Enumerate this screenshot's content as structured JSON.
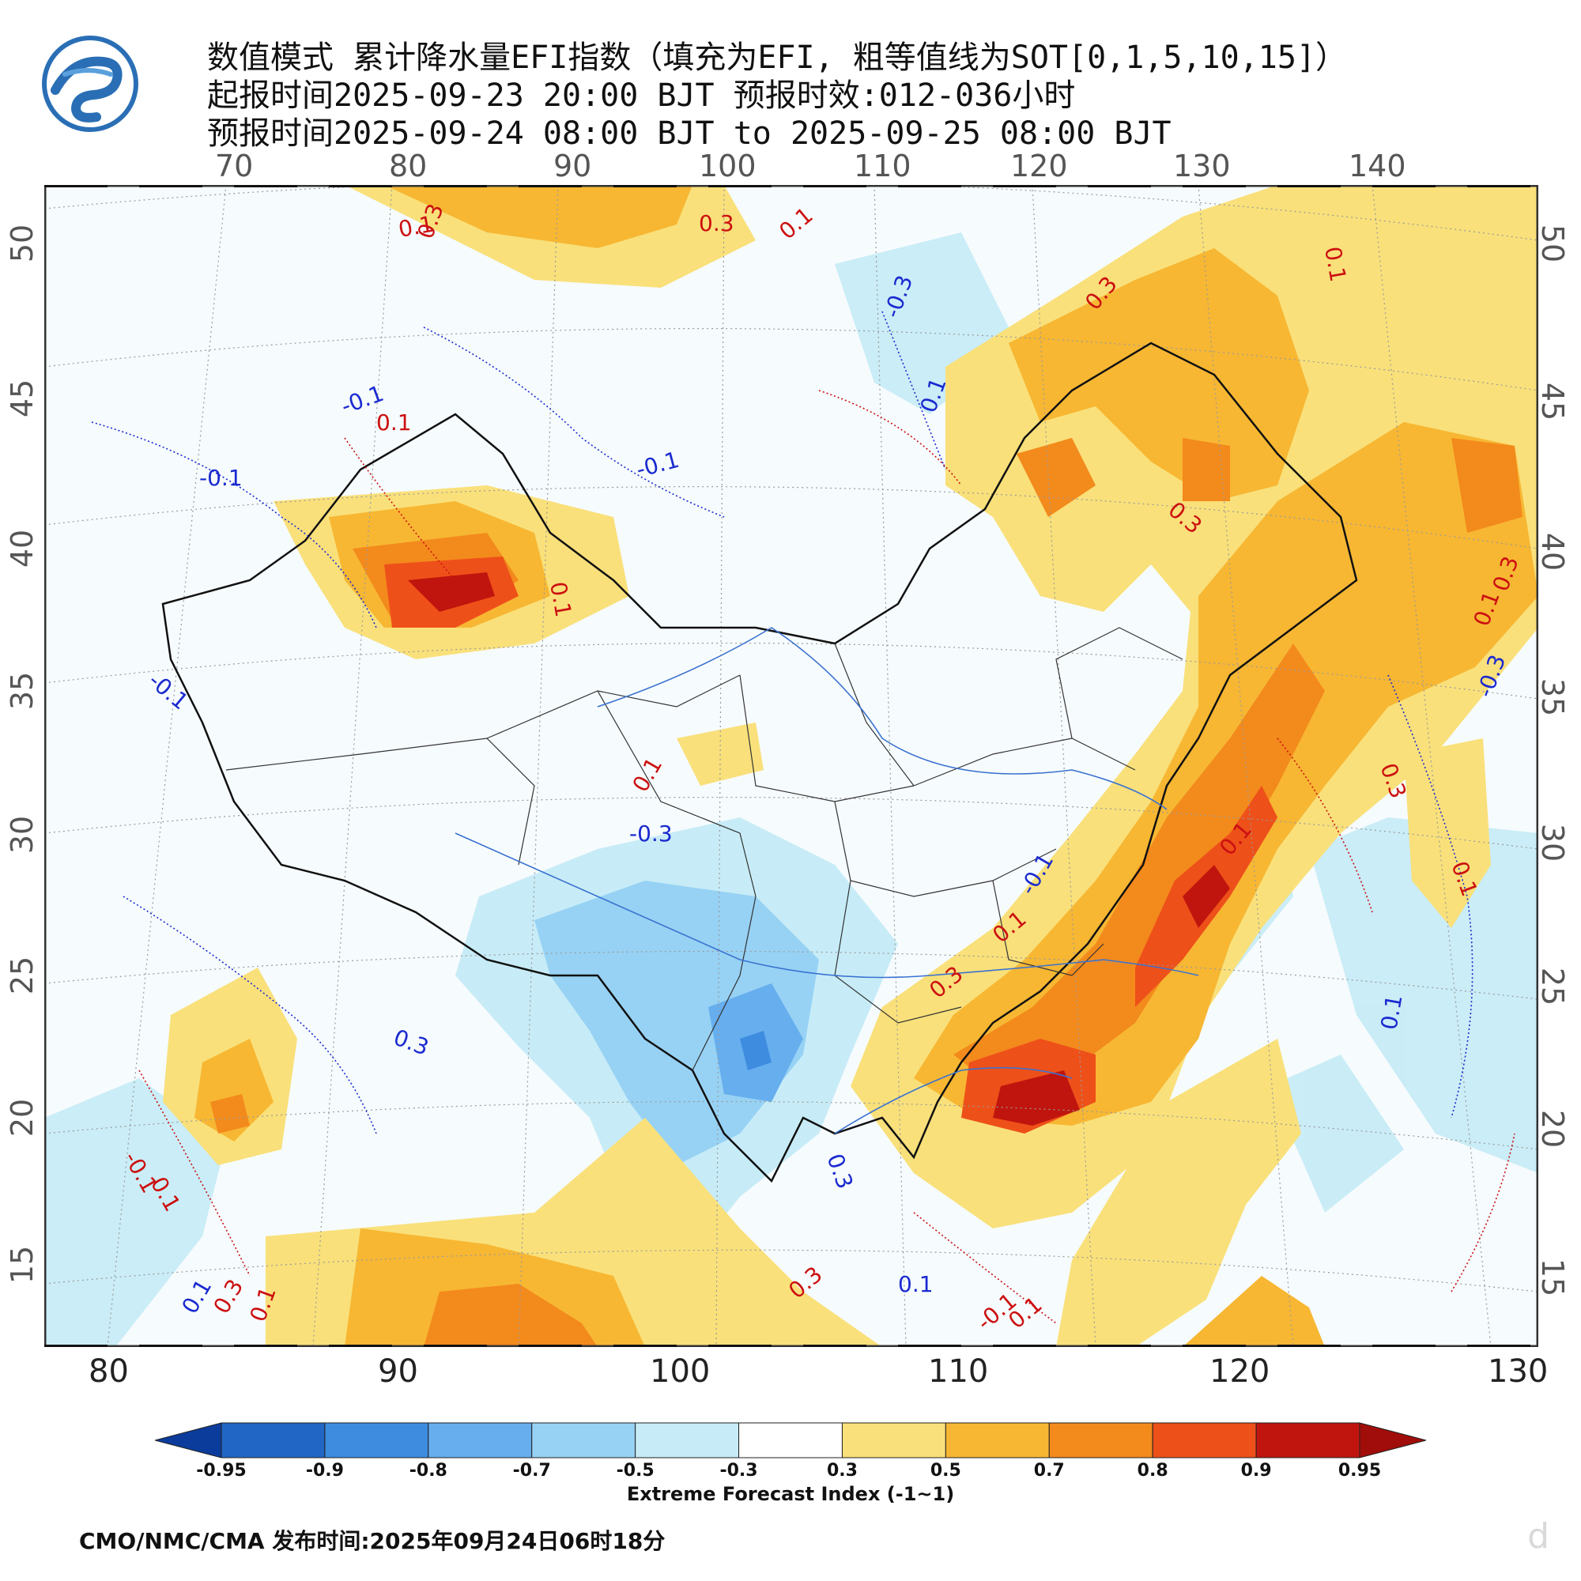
{
  "header": {
    "line1": "数值模式 累计降水量EFI指数（填充为EFI, 粗等值线为SOT[0,1,5,10,15]）",
    "line2": "起报时间2025-09-23 20:00 BJT 预报时效:012-036小时",
    "line3": "预报时间2025-09-24 08:00 BJT to 2025-09-25 08:00 BJT"
  },
  "axes": {
    "top_lon_ticks": [
      "70",
      "80",
      "90",
      "100",
      "110",
      "120",
      "130",
      "140"
    ],
    "bottom_lon_ticks": [
      "80",
      "90",
      "100",
      "110",
      "120",
      "130"
    ],
    "lat_ticks": [
      "50",
      "45",
      "40",
      "35",
      "30",
      "25",
      "20",
      "15"
    ]
  },
  "contour_labels": [
    "0.1",
    "0.3",
    "0.3",
    "0.1",
    "-0.3",
    "0.3",
    "0.1",
    "-0.1",
    "0.1",
    "-0.1",
    "0.1",
    "-0.1",
    "0.3",
    "0.1",
    "0.3",
    "0.1",
    "-0.3",
    "-0.1",
    "0.3",
    "0.1",
    "-0.3",
    "0.1",
    "-0.1",
    "0.1",
    "0.1",
    "0.3",
    "0.1",
    "0.3",
    "-0.1",
    "0.1",
    "0.3",
    "0.1",
    "0.3",
    "-0.1",
    "0.1",
    "0.1",
    "0.3",
    "0.1"
  ],
  "colorbar": {
    "ticks": [
      "-0.95",
      "-0.9",
      "-0.8",
      "-0.7",
      "-0.5",
      "-0.3",
      "0.3",
      "0.5",
      "0.7",
      "0.8",
      "0.9",
      "0.95"
    ],
    "colors": [
      "#2166c4",
      "#3d8ce0",
      "#66aeee",
      "#97d2f4",
      "#c7ecf7",
      "#ffffff",
      "#f9e07a",
      "#f7b733",
      "#f38a1c",
      "#ee5019",
      "#c0150e"
    ],
    "low_arrow_color": "#0b3c9c",
    "high_arrow_color": "#a10d0a",
    "title": "Extreme Forecast Index (-1~1)"
  },
  "footer": {
    "text": "CMO/NMC/CMA 发布时间:2025年09月24日06时18分"
  },
  "watermark": "d"
}
